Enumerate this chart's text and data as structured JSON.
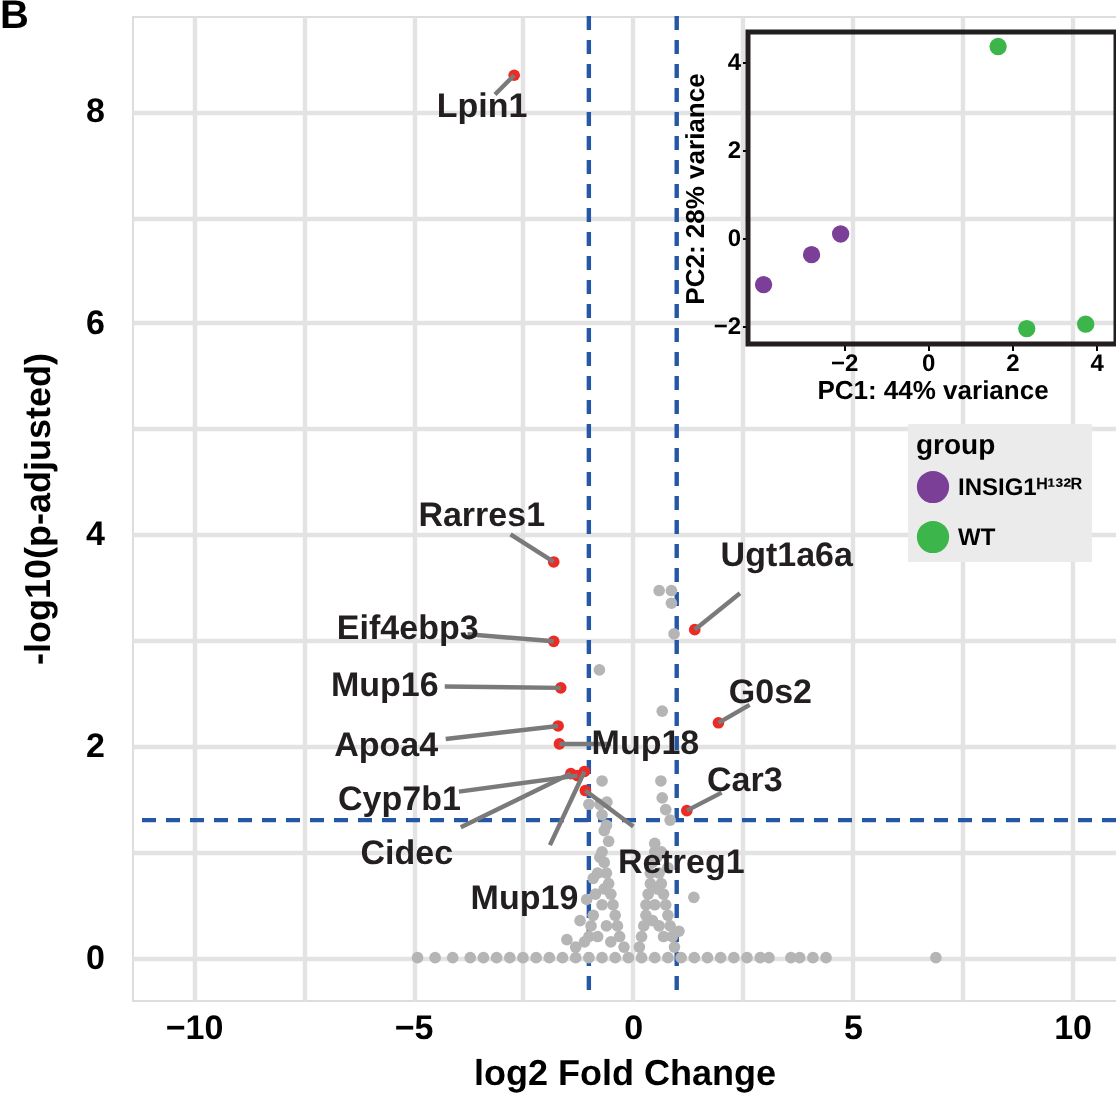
{
  "chart_data": [
    {
      "type": "scatter",
      "xlabel": "log2 Fold Change",
      "ylabel": "-log10(p-adjusted)",
      "xlim": [
        -11.4,
        11.0
      ],
      "ylim": [
        -0.4,
        8.9
      ],
      "xticks": [
        -10,
        {
          "value": -7.5,
          "label": null
        },
        -5,
        {
          "value": -2.5,
          "label": null
        },
        0,
        {
          "value": 2.5,
          "label": null
        },
        5,
        {
          "value": 7.5,
          "label": null
        },
        10
      ],
      "yticks": [
        0,
        {
          "value": 1,
          "label": null
        },
        2,
        {
          "value": 3,
          "label": null
        },
        4,
        {
          "value": 5,
          "label": null
        },
        6,
        {
          "value": 7,
          "label": null
        },
        8
      ],
      "grid": true,
      "series": [
        {
          "color": "#b5b5b5",
          "x": [
            -4.9,
            -4.5,
            -4.1,
            -3.7,
            -3.4,
            -3.1,
            -2.8,
            -2.5,
            -2.2,
            -1.9,
            -1.6,
            -1.3,
            -1.0,
            -0.7,
            -0.4,
            -0.1,
            0.2,
            0.5,
            0.8,
            1.1,
            1.4,
            1.7,
            2.0,
            2.3,
            2.6,
            2.9,
            3.1,
            3.6,
            3.8,
            4.1,
            4.4,
            6.9,
            -0.2,
            -0.3,
            -0.35,
            -0.4,
            -0.45,
            -0.5,
            -0.55,
            -0.6,
            -0.65,
            -0.7,
            -0.75,
            -0.8,
            -0.85,
            -0.9,
            -0.95,
            -1.0,
            -1.1,
            -1.2,
            -1.3,
            -0.6,
            -0.7,
            -0.5,
            -0.8,
            -0.65,
            -0.9,
            -1.05,
            -0.55,
            -0.6,
            -0.7,
            -0.75,
            -0.65,
            -1.5,
            0.15,
            0.2,
            0.25,
            0.3,
            0.3,
            0.35,
            0.4,
            0.4,
            0.45,
            0.5,
            0.5,
            0.55,
            0.6,
            0.65,
            0.7,
            0.75,
            0.8,
            0.85,
            0.9,
            0.95,
            0.6,
            0.5,
            0.7,
            0.55,
            0.8,
            0.65,
            1.05,
            0.45,
            0.6,
            0.88,
            0.88,
            0.94,
            -0.76,
            0.67,
            0.64,
            0.67,
            -0.7,
            -0.59,
            1.39,
            -1.0,
            0.75,
            0.85
          ],
          "values": [
            0,
            0,
            0,
            0,
            0,
            0,
            0,
            0,
            0,
            0,
            0,
            0,
            0,
            0,
            0,
            0,
            0,
            0,
            0,
            0,
            0,
            0,
            0,
            0,
            0,
            0,
            0,
            0,
            0,
            0,
            0,
            0,
            0.1,
            0.2,
            0.3,
            0.4,
            0.5,
            0.6,
            0.7,
            0.8,
            0.9,
            1.0,
            0.95,
            0.8,
            0.6,
            0.4,
            0.3,
            0.2,
            0.15,
            0.35,
            0.1,
            0.3,
            0.5,
            0.15,
            0.2,
            0.65,
            0.75,
            0.55,
            1.1,
            1.25,
            1.35,
            1.45,
            1.2,
            0.17,
            0.1,
            0.2,
            0.3,
            0.4,
            0.5,
            0.6,
            0.7,
            0.8,
            0.9,
            1.0,
            1.08,
            0.95,
            0.8,
            0.7,
            0.6,
            0.5,
            0.4,
            0.3,
            0.2,
            0.1,
            0.3,
            0.5,
            0.2,
            0.65,
            0.85,
            1.0,
            0.25,
            0.35,
            3.47,
            3.47,
            3.35,
            3.06,
            2.72,
            2.33,
            1.67,
            1.51,
            1.67,
            1.47,
            0.57,
            1.45,
            1.4,
            1.3
          ]
        },
        {
          "color": "#ee2a24",
          "x": [
            -2.7,
            -1.8,
            -1.8,
            -1.64,
            -1.7,
            -1.67,
            -1.26,
            -1.41,
            -1.1,
            -1.08,
            1.41,
            1.95,
            1.23
          ],
          "values": [
            8.34,
            3.74,
            2.99,
            2.55,
            2.19,
            2.02,
            1.72,
            1.74,
            1.76,
            1.58,
            3.1,
            2.22,
            1.39
          ]
        }
      ],
      "ref_lines": [
        {
          "axis": "x",
          "value": -1,
          "color": "#2457a6",
          "line_style": "dashed"
        },
        {
          "axis": "x",
          "value": 1,
          "color": "#2457a6",
          "line_style": "dashed"
        },
        {
          "axis": "y",
          "value": 1.3,
          "color": "#2457a6",
          "line_style": "dashed"
        }
      ],
      "annotations": [
        "B",
        {
          "text": "Lpin1",
          "x": -2.7,
          "y": 8.34
        },
        {
          "text": "Rarres1",
          "x": -1.8,
          "y": 3.74
        },
        {
          "text": "Eif4ebp3",
          "x": -1.8,
          "y": 2.99
        },
        {
          "text": "Mup16",
          "x": -1.64,
          "y": 2.55
        },
        {
          "text": "Apoa4",
          "x": -1.7,
          "y": 2.19
        },
        {
          "text": "Mup18",
          "x": -1.67,
          "y": 2.02
        },
        {
          "text": "Cyp7b1",
          "x": -1.26,
          "y": 1.72
        },
        {
          "text": "Cidec",
          "x": -1.41,
          "y": 1.74
        },
        {
          "text": "Mup19",
          "x": -1.1,
          "y": 1.76
        },
        {
          "text": "Retreg1",
          "x": -1.08,
          "y": 1.58
        },
        {
          "text": "Ugt1a6a",
          "x": 1.41,
          "y": 3.1
        },
        {
          "text": "G0s2",
          "x": 1.95,
          "y": 2.22
        },
        {
          "text": "Car3",
          "x": 1.23,
          "y": 1.39
        }
      ]
    },
    {
      "type": "scatter",
      "xlabel": "PC1: 44% variance",
      "ylabel": "PC2: 28% variance",
      "xlim": [
        -4.27,
        4.47
      ],
      "ylim": [
        -2.43,
        4.66
      ],
      "xticks": [
        -2,
        0,
        2,
        4
      ],
      "yticks": [
        -2,
        0,
        2,
        4
      ],
      "legend": "bottom",
      "legend_title": "group",
      "series": [
        {
          "name": "INSIG1ᴴ¹³²ᴿ",
          "color": "#7b3f98",
          "x": [
            -3.9,
            -2.76,
            -2.07
          ],
          "values": [
            -1.08,
            -0.4,
            0.07
          ]
        },
        {
          "name": "WT",
          "color": "#3cb54a",
          "x": [
            1.67,
            2.35,
            3.75
          ],
          "values": [
            4.33,
            -2.08,
            -1.98
          ]
        }
      ]
    }
  ]
}
